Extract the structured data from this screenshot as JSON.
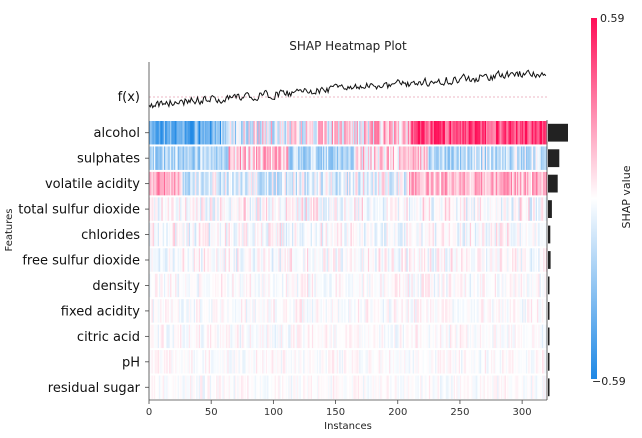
{
  "chart_data": {
    "type": "heatmap",
    "title": "SHAP Heatmap Plot",
    "fx_label": "f(x)",
    "xlabel": "Instances",
    "ylabel": "Features",
    "colorbar_label": "SHAP value",
    "colorbar_max_label": "0.59",
    "colorbar_min_label": "−0.59",
    "value_range": [
      -0.59,
      0.59
    ],
    "instances": 320,
    "xlim": [
      0,
      320
    ],
    "xticks": [
      0,
      50,
      100,
      150,
      200,
      250,
      300
    ],
    "colors": {
      "positive": "#ff0d57",
      "negative": "#1e88e5",
      "neutral": "#ffffff",
      "importance_bar": "#222222",
      "fx_line": "#111111",
      "fx_baseline": "#e8a0b4"
    },
    "features": [
      {
        "name": "alcohol",
        "importance": 0.62,
        "strength": 0.9
      },
      {
        "name": "sulphates",
        "importance": 0.35,
        "strength": 0.62
      },
      {
        "name": "volatile acidity",
        "importance": 0.3,
        "strength": 0.55
      },
      {
        "name": "total sulfur dioxide",
        "importance": 0.12,
        "strength": 0.32
      },
      {
        "name": "chlorides",
        "importance": 0.07,
        "strength": 0.24
      },
      {
        "name": "free sulfur dioxide",
        "importance": 0.08,
        "strength": 0.22
      },
      {
        "name": "density",
        "importance": 0.04,
        "strength": 0.16
      },
      {
        "name": "fixed acidity",
        "importance": 0.03,
        "strength": 0.14
      },
      {
        "name": "citric acid",
        "importance": 0.03,
        "strength": 0.14
      },
      {
        "name": "pH",
        "importance": 0.02,
        "strength": 0.12
      },
      {
        "name": "residual sugar",
        "importance": 0.02,
        "strength": 0.1
      }
    ]
  }
}
